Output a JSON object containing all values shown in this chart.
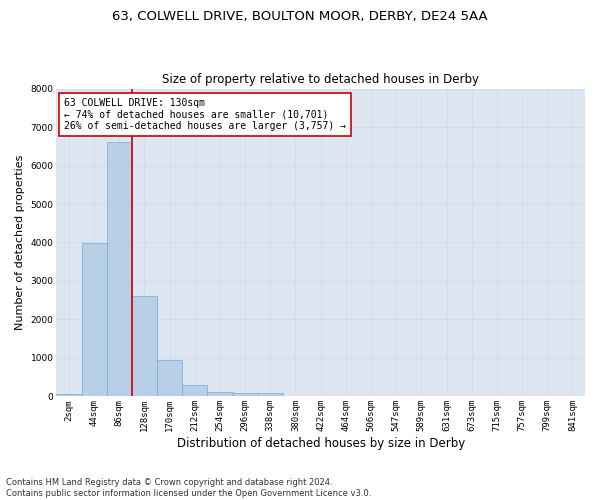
{
  "title1": "63, COLWELL DRIVE, BOULTON MOOR, DERBY, DE24 5AA",
  "title2": "Size of property relative to detached houses in Derby",
  "xlabel": "Distribution of detached houses by size in Derby",
  "ylabel": "Number of detached properties",
  "bar_values": [
    75,
    3975,
    6600,
    2600,
    950,
    300,
    120,
    100,
    80,
    0,
    0,
    0,
    0,
    0,
    0,
    0,
    0,
    0,
    0,
    0,
    0
  ],
  "bar_labels": [
    "2sqm",
    "44sqm",
    "86sqm",
    "128sqm",
    "170sqm",
    "212sqm",
    "254sqm",
    "296sqm",
    "338sqm",
    "380sqm",
    "422sqm",
    "464sqm",
    "506sqm",
    "547sqm",
    "589sqm",
    "631sqm",
    "673sqm",
    "715sqm",
    "757sqm",
    "799sqm",
    "841sqm"
  ],
  "bar_color": "#b8cfe8",
  "bar_edge_color": "#7aaad0",
  "vline_color": "#cc0000",
  "annotation_box_text": "63 COLWELL DRIVE: 130sqm\n← 74% of detached houses are smaller (10,701)\n26% of semi-detached houses are larger (3,757) →",
  "annotation_box_color": "#cc0000",
  "ylim": [
    0,
    8000
  ],
  "yticks": [
    0,
    1000,
    2000,
    3000,
    4000,
    5000,
    6000,
    7000,
    8000
  ],
  "grid_color": "#d0d8e4",
  "bg_color": "#dde6f0",
  "footnote": "Contains HM Land Registry data © Crown copyright and database right 2024.\nContains public sector information licensed under the Open Government Licence v3.0.",
  "title1_fontsize": 9.5,
  "title2_fontsize": 8.5,
  "xlabel_fontsize": 8.5,
  "ylabel_fontsize": 8,
  "annot_fontsize": 7,
  "tick_fontsize": 6.5,
  "footnote_fontsize": 6
}
